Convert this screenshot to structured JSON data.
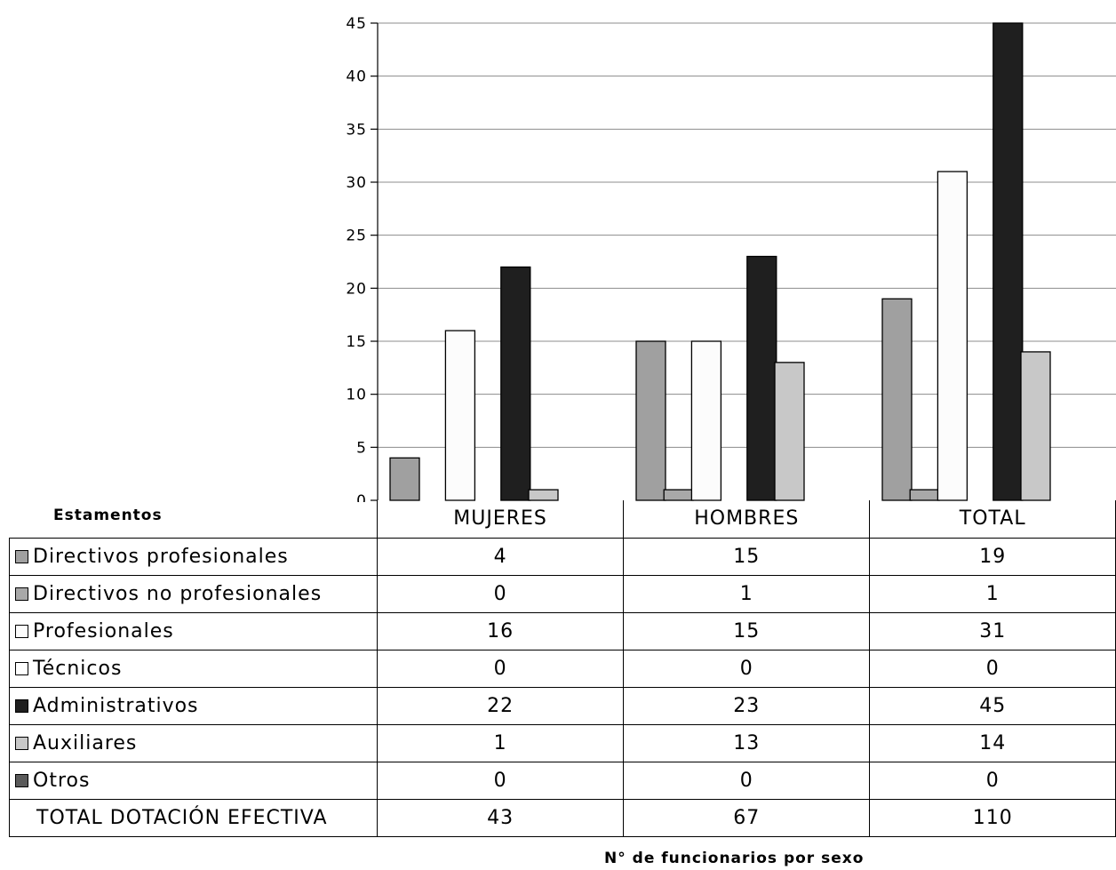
{
  "chart_data": {
    "type": "bar",
    "categories": [
      "MUJERES",
      "HOMBRES",
      "TOTAL"
    ],
    "series": [
      {
        "name": "Directivos profesionales",
        "values": [
          4,
          15,
          19
        ],
        "color": "#a0a0a0"
      },
      {
        "name": "Directivos no profesionales",
        "values": [
          0,
          1,
          1
        ],
        "color": "#a8a8a8"
      },
      {
        "name": "Profesionales",
        "values": [
          16,
          15,
          31
        ],
        "color": "#fcfcfc"
      },
      {
        "name": "Técnicos",
        "values": [
          0,
          0,
          0
        ],
        "color": "#ffffff"
      },
      {
        "name": "Administrativos",
        "values": [
          22,
          23,
          45
        ],
        "color": "#1f1f1f"
      },
      {
        "name": "Auxiliares",
        "values": [
          1,
          13,
          14
        ],
        "color": "#c8c8c8"
      },
      {
        "name": "Otros",
        "values": [
          0,
          0,
          0
        ],
        "color": "#5a5a5a"
      }
    ],
    "totals": {
      "label": "TOTAL DOTACIÓN EFECTIVA",
      "values": [
        43,
        67,
        110
      ]
    },
    "yticks": [
      "0",
      "5",
      "10",
      "15",
      "20",
      "25",
      "30",
      "35",
      "40",
      "45"
    ],
    "ylim": [
      0,
      45
    ],
    "table_header": "Estamentos",
    "caption": "N° de funcionarios por sexo",
    "grid": true,
    "legend": "data-table"
  }
}
